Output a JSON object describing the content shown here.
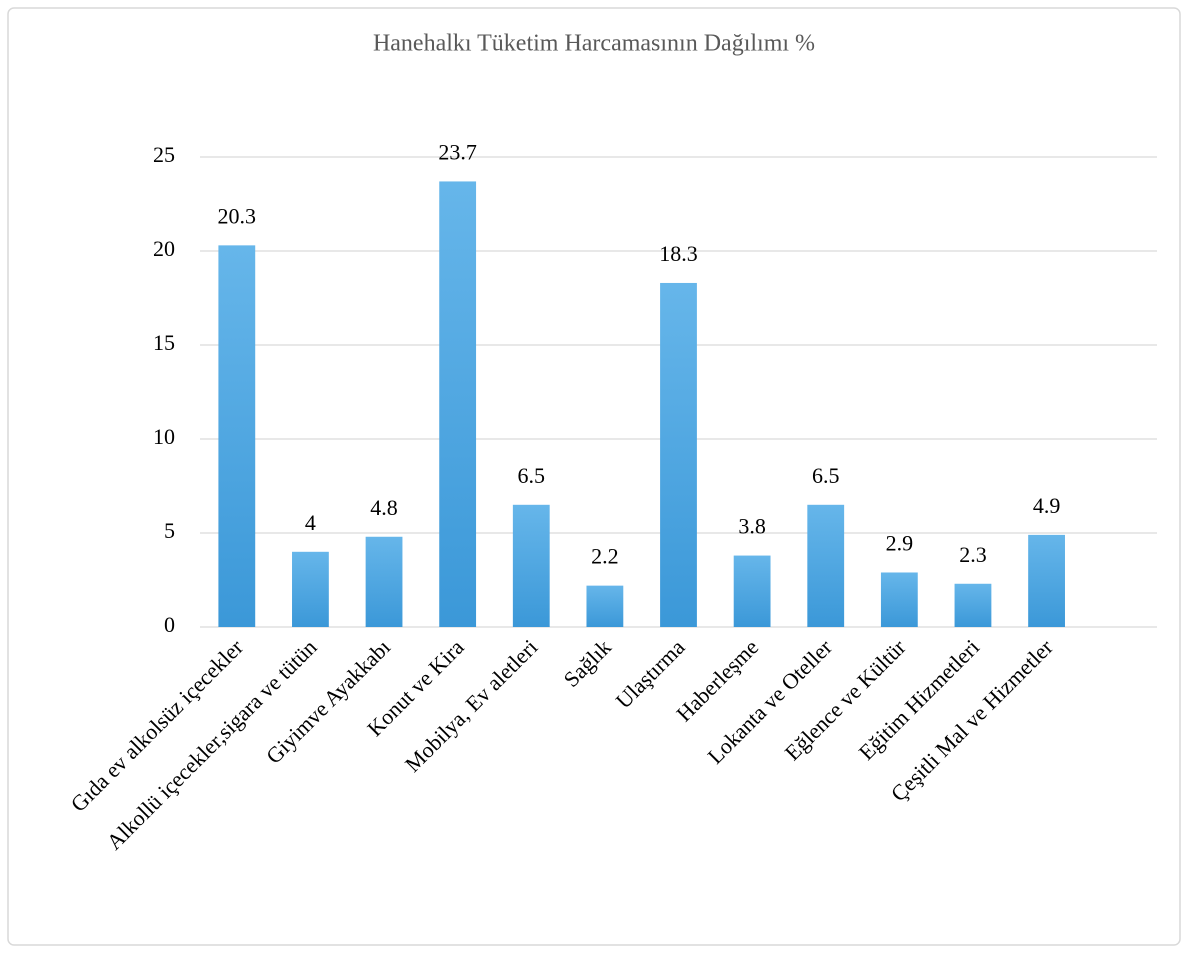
{
  "chart_data": {
    "type": "bar",
    "title": "Hanehalkı Tüketim Harcamasının Dağılımı %",
    "categories": [
      "Gıda ev alkolsüz içecekler",
      "Alkollü içecekler,sigara ve tütün",
      "Giyimve Ayakkabı",
      "Konut ve Kira",
      "Mobilya, Ev aletleri",
      "Sağlık",
      "Ulaştırma",
      "Haberleşme",
      "Lokanta ve Oteller",
      "Eğlence ve Kültür",
      "Eğitim Hizmetleri",
      "Çeşitli Mal ve Hizmetler",
      null
    ],
    "values": [
      20.3,
      4,
      4.8,
      23.7,
      6.5,
      2.2,
      18.3,
      3.8,
      6.5,
      2.9,
      2.3,
      4.9,
      null
    ],
    "color": "#4aa3e0",
    "ylim": [
      0,
      25
    ],
    "yticks": [
      0,
      5,
      10,
      15,
      20,
      25
    ],
    "grid": true
  }
}
